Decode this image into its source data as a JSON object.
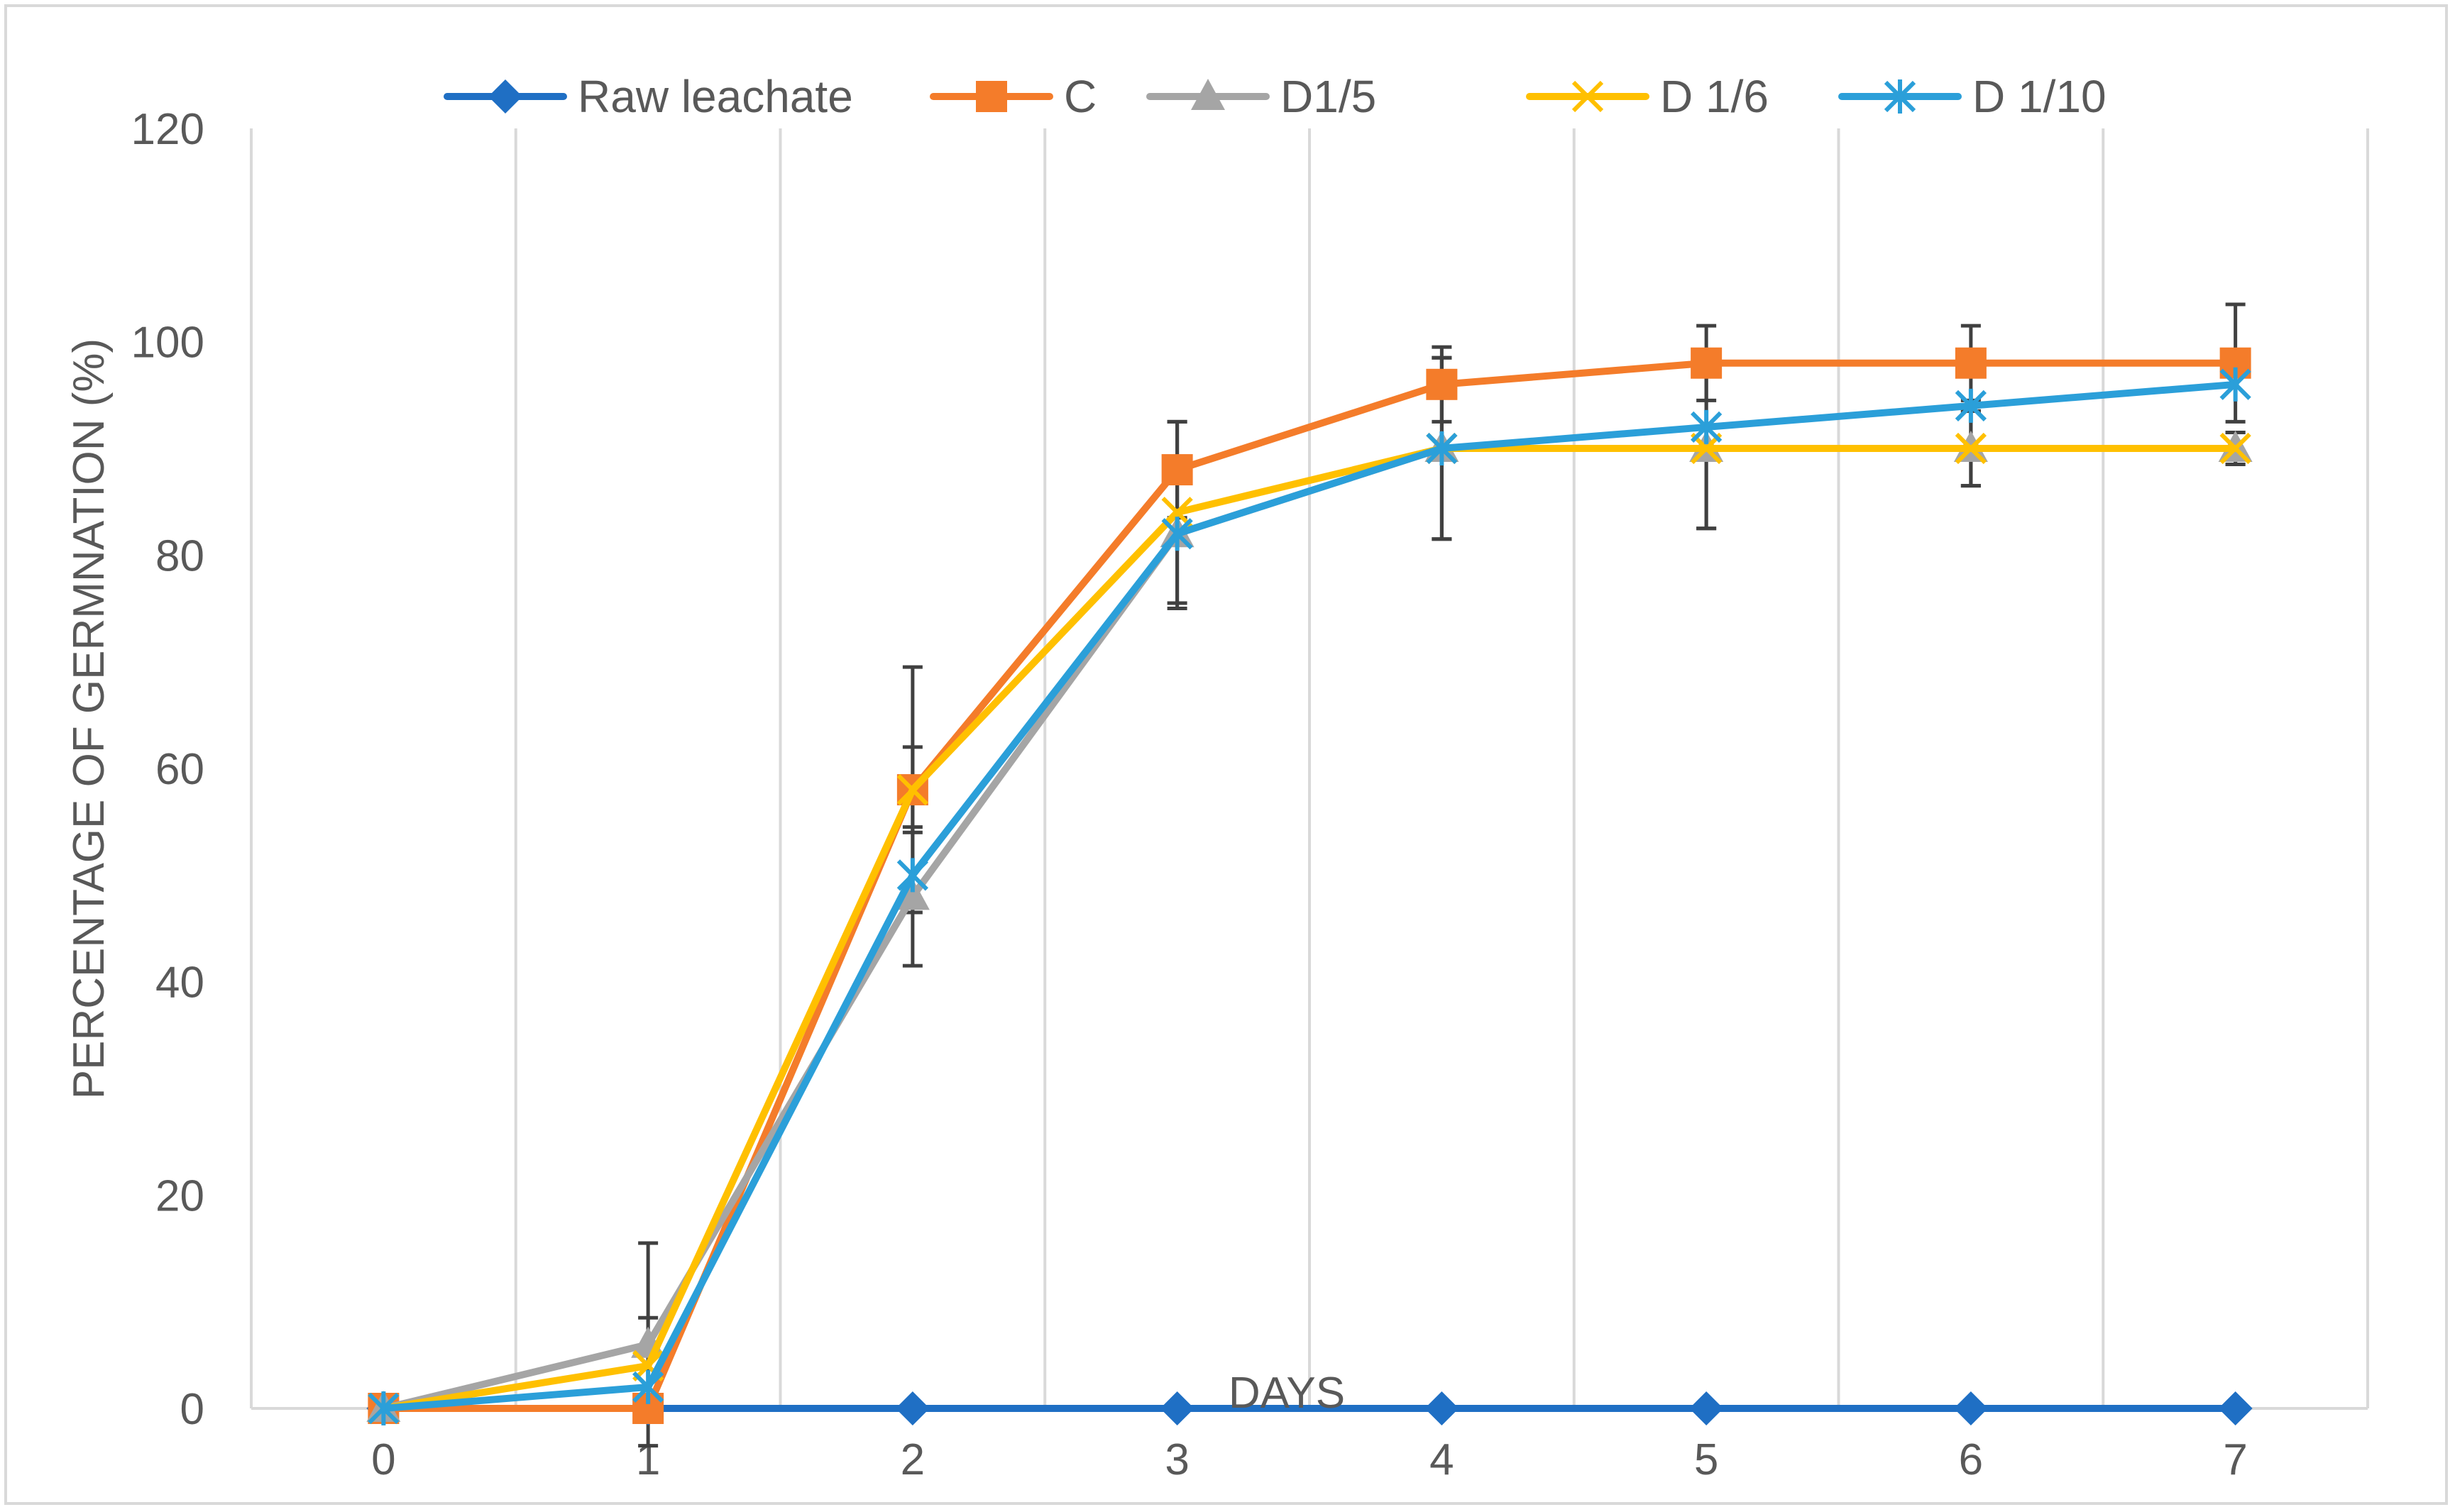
{
  "chart_data": {
    "type": "line",
    "title": "",
    "xlabel": "DAYS",
    "ylabel": "PERCENTAGE OF GERMNATION (%)",
    "x": [
      0,
      1,
      2,
      3,
      4,
      5,
      6,
      7
    ],
    "xlim": [
      -0.5,
      7.5
    ],
    "ylim": [
      0,
      120
    ],
    "y_ticks": [
      0,
      20,
      40,
      60,
      80,
      100,
      120
    ],
    "grid": "vertical",
    "legend_position": "top",
    "series": [
      {
        "name": "Raw  leachate",
        "marker": "diamond",
        "color": "#1f6fc4",
        "values": [
          0,
          0,
          0,
          0,
          0,
          0,
          0,
          0
        ],
        "error": [
          0,
          0,
          0,
          0,
          0,
          0,
          0,
          0
        ]
      },
      {
        "name": "C",
        "marker": "square",
        "color": "#f47c2a",
        "values": [
          0,
          0,
          58,
          88,
          96,
          98,
          98,
          98
        ],
        "error": [
          0,
          0,
          4,
          4.5,
          3.5,
          3.5,
          3.5,
          5.5
        ]
      },
      {
        "name": "D1/5",
        "marker": "triangle",
        "color": "#a5a5a5",
        "values": [
          0,
          6,
          48,
          82,
          90,
          90,
          90,
          90
        ],
        "error": [
          0,
          9.5,
          6.5,
          7,
          8.5,
          7.5,
          3.5,
          1.5
        ]
      },
      {
        "name": "D 1/6",
        "marker": "x",
        "color": "#ffc000",
        "values": [
          0,
          4,
          58,
          84,
          90,
          90,
          90,
          90
        ],
        "error": [
          0,
          4.5,
          11.5,
          8.5,
          8.5,
          7.5,
          3.5,
          1.5
        ]
      },
      {
        "name": "D 1/10",
        "marker": "asterisk",
        "color": "#2b9fd9",
        "values": [
          0,
          2,
          50,
          82,
          90,
          92,
          94,
          96
        ],
        "error": [
          0,
          0,
          0,
          0,
          0,
          0,
          0,
          0
        ]
      }
    ]
  },
  "colors": {
    "axis_line": "#d9d9d9",
    "gridline": "#d9d9d9",
    "error_bar": "#404040",
    "text": "#595959"
  }
}
